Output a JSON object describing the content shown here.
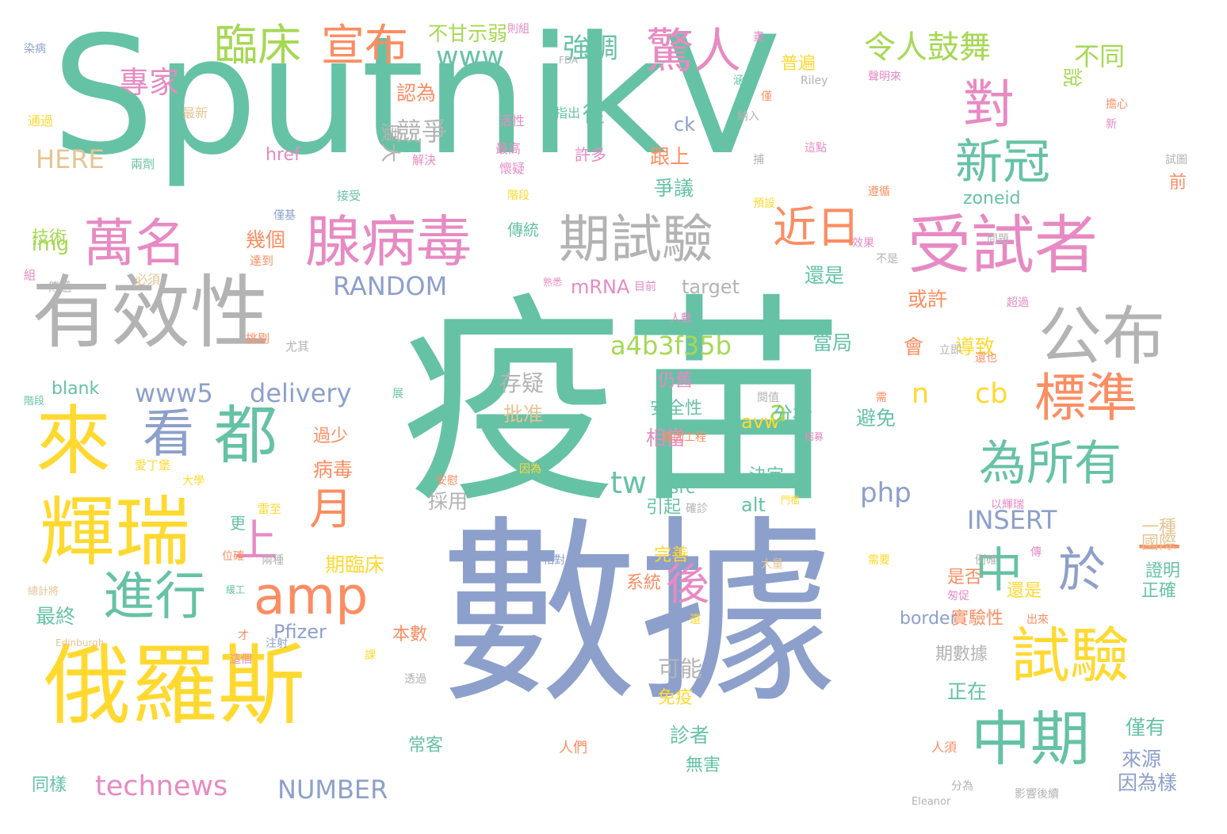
{
  "palette": {
    "teal": "#66c2a5",
    "orange": "#fc8d62",
    "blue": "#8da0cb",
    "pink": "#e78ac3",
    "green": "#a6d854",
    "yellow": "#ffd92f",
    "tan": "#e5c494",
    "gray": "#b3b3b3"
  },
  "words": [
    {
      "text": "疫苗",
      "color": "teal"
    },
    {
      "text": "數據",
      "color": "blue"
    },
    {
      "text": "SputnikV",
      "color": "teal"
    },
    {
      "text": "有效性",
      "color": "gray"
    },
    {
      "text": "俄羅斯",
      "color": "yellow"
    },
    {
      "text": "受試者",
      "color": "pink"
    },
    {
      "text": "來",
      "color": "yellow"
    },
    {
      "text": "輝瑞",
      "color": "yellow"
    },
    {
      "text": "試驗",
      "color": "yellow"
    },
    {
      "text": "中期",
      "color": "teal"
    },
    {
      "text": "為所有",
      "color": "teal"
    },
    {
      "text": "腺病毒",
      "color": "pink"
    },
    {
      "text": "期試驗",
      "color": "gray"
    },
    {
      "text": "萬名",
      "color": "pink"
    },
    {
      "text": "公布",
      "color": "gray"
    },
    {
      "text": "都",
      "color": "teal"
    },
    {
      "text": "看",
      "color": "blue"
    },
    {
      "text": "進行",
      "color": "teal"
    },
    {
      "text": "amp",
      "color": "orange"
    },
    {
      "text": "標準",
      "color": "orange"
    },
    {
      "text": "中",
      "color": "teal"
    },
    {
      "text": "於",
      "color": "blue"
    },
    {
      "text": "對",
      "color": "pink"
    },
    {
      "text": "新冠",
      "color": "teal"
    },
    {
      "text": "臨床",
      "color": "green"
    },
    {
      "text": "宣布",
      "color": "orange"
    },
    {
      "text": "驚人",
      "color": "pink"
    },
    {
      "text": "近日",
      "color": "orange"
    },
    {
      "text": "上",
      "color": "pink"
    },
    {
      "text": "月",
      "color": "orange"
    },
    {
      "text": "後",
      "color": "pink"
    },
    {
      "text": "一",
      "color": "orange"
    },
    {
      "text": "令人鼓舞",
      "color": "green"
    },
    {
      "text": "專家",
      "color": "pink"
    },
    {
      "text": "www",
      "color": "teal"
    },
    {
      "text": "強調",
      "color": "teal"
    },
    {
      "text": "不甘示弱",
      "color": "green"
    },
    {
      "text": "不同",
      "color": "green"
    },
    {
      "text": "說",
      "color": "green"
    },
    {
      "text": "技術",
      "color": "green"
    },
    {
      "text": "img",
      "color": "green"
    },
    {
      "text": "HERE",
      "color": "tan"
    },
    {
      "text": "RANDOM",
      "color": "blue"
    },
    {
      "text": "a4b3f35b",
      "color": "green"
    },
    {
      "text": "www5",
      "color": "blue"
    },
    {
      "text": "delivery",
      "color": "blue"
    },
    {
      "text": "technews",
      "color": "pink"
    },
    {
      "text": "NUMBER",
      "color": "blue"
    },
    {
      "text": "INSERT",
      "color": "blue"
    },
    {
      "text": "php",
      "color": "blue"
    },
    {
      "text": "cb",
      "color": "yellow"
    },
    {
      "text": "tw",
      "color": "teal"
    },
    {
      "text": "n",
      "color": "yellow"
    },
    {
      "text": "a",
      "color": "green"
    },
    {
      "text": "avw",
      "color": "yellow"
    },
    {
      "text": "alt",
      "color": "teal"
    },
    {
      "text": "src",
      "color": "teal"
    },
    {
      "text": "href",
      "color": "pink"
    },
    {
      "text": "ck",
      "color": "blue"
    },
    {
      "text": "zoneid",
      "color": "teal"
    },
    {
      "text": "target",
      "color": "gray"
    },
    {
      "text": "mRNA",
      "color": "pink"
    },
    {
      "text": "blank",
      "color": "teal"
    },
    {
      "text": "border",
      "color": "blue"
    },
    {
      "text": "Pfizer",
      "color": "blue"
    },
    {
      "text": "競爭",
      "color": "gray"
    },
    {
      "text": "廣大",
      "color": "gray"
    },
    {
      "text": "從",
      "color": "teal"
    },
    {
      "text": "許多",
      "color": "pink"
    },
    {
      "text": "跟上",
      "color": "orange"
    },
    {
      "text": "爭議",
      "color": "teal"
    },
    {
      "text": "認為",
      "color": "orange"
    },
    {
      "text": "還是",
      "color": "teal"
    },
    {
      "text": "或許",
      "color": "orange"
    },
    {
      "text": "當局",
      "color": "teal"
    },
    {
      "text": "會",
      "color": "orange"
    },
    {
      "text": "導致",
      "color": "yellow"
    },
    {
      "text": "避免",
      "color": "teal"
    },
    {
      "text": "分析",
      "color": "teal"
    },
    {
      "text": "相當",
      "color": "pink"
    },
    {
      "text": "期臨床",
      "color": "yellow"
    },
    {
      "text": "病毒",
      "color": "orange"
    },
    {
      "text": "最終",
      "color": "teal"
    },
    {
      "text": "可能",
      "color": "gray"
    },
    {
      "text": "正在",
      "color": "teal"
    },
    {
      "text": "診者",
      "color": "teal"
    },
    {
      "text": "來源",
      "color": "blue"
    },
    {
      "text": "僅有",
      "color": "teal"
    },
    {
      "text": "因為樣",
      "color": "blue"
    },
    {
      "text": "期數據",
      "color": "gray"
    },
    {
      "text": "實驗性",
      "color": "orange"
    },
    {
      "text": "證明",
      "color": "teal"
    },
    {
      "text": "正確",
      "color": "teal"
    },
    {
      "text": "國際",
      "color": "tan"
    },
    {
      "text": "一種",
      "color": "tan"
    },
    {
      "text": "引起",
      "color": "teal"
    },
    {
      "text": "採用",
      "color": "gray"
    },
    {
      "text": "存疑",
      "color": "gray"
    },
    {
      "text": "批准",
      "color": "tan"
    },
    {
      "text": "決定",
      "color": "teal"
    },
    {
      "text": "安全性",
      "color": "teal"
    },
    {
      "text": "仍舊",
      "color": "pink"
    },
    {
      "text": "幾個",
      "color": "orange"
    },
    {
      "text": "傳統",
      "color": "teal"
    },
    {
      "text": "同樣",
      "color": "teal"
    },
    {
      "text": "本數",
      "color": "orange"
    },
    {
      "text": "系統",
      "color": "orange"
    },
    {
      "text": "完善",
      "color": "yellow"
    },
    {
      "text": "常客",
      "color": "teal"
    },
    {
      "text": "無害",
      "color": "teal"
    },
    {
      "text": "免疫",
      "color": "yellow"
    },
    {
      "text": "過少",
      "color": "orange"
    },
    {
      "text": "更",
      "color": "teal"
    },
    {
      "text": "普遍",
      "color": "yellow"
    },
    {
      "text": "前",
      "color": "orange"
    },
    {
      "text": "是否",
      "color": "orange"
    },
    {
      "text": "還是",
      "color": "yellow"
    },
    {
      "text": "染病",
      "color": "blue"
    },
    {
      "text": "通過",
      "color": "yellow"
    },
    {
      "text": "最新",
      "color": "tan"
    },
    {
      "text": "活性",
      "color": "pink"
    },
    {
      "text": "指出",
      "color": "teal"
    },
    {
      "text": "最高",
      "color": "pink"
    },
    {
      "text": "懷疑",
      "color": "pink"
    },
    {
      "text": "階段",
      "color": "yellow"
    },
    {
      "text": "兩劑",
      "color": "teal"
    },
    {
      "text": "解決",
      "color": "pink"
    },
    {
      "text": "接受",
      "color": "teal"
    },
    {
      "text": "僅基",
      "color": "blue"
    },
    {
      "text": "達到",
      "color": "orange"
    },
    {
      "text": "必須",
      "color": "tan"
    },
    {
      "text": "組",
      "color": "pink"
    },
    {
      "text": "傳遞",
      "color": "gray"
    },
    {
      "text": "挑剔",
      "color": "orange"
    },
    {
      "text": "尤其",
      "color": "gray"
    },
    {
      "text": "基",
      "color": "teal"
    },
    {
      "text": "展",
      "color": "teal"
    },
    {
      "text": "大學",
      "color": "yellow"
    },
    {
      "text": "階段",
      "color": "teal"
    },
    {
      "text": "愛丁堡",
      "color": "yellow"
    },
    {
      "text": "雷至",
      "color": "yellow"
    },
    {
      "text": "安慰",
      "color": "orange"
    },
    {
      "text": "因為",
      "color": "yellow"
    },
    {
      "text": "位確",
      "color": "orange"
    },
    {
      "text": "兩種",
      "color": "gray"
    },
    {
      "text": "總計將",
      "color": "tan"
    },
    {
      "text": "才",
      "color": "orange"
    },
    {
      "text": "Edinburgh",
      "color": "tan"
    },
    {
      "text": "這個",
      "color": "pink"
    },
    {
      "text": "注射",
      "color": "blue"
    },
    {
      "text": "課",
      "color": "yellow"
    },
    {
      "text": "透過",
      "color": "gray"
    },
    {
      "text": "人們",
      "color": "orange"
    },
    {
      "text": "相對",
      "color": "blue"
    },
    {
      "text": "例",
      "color": "blue"
    },
    {
      "text": "大量",
      "color": "tan"
    },
    {
      "text": "還",
      "color": "yellow"
    },
    {
      "text": "出來",
      "color": "orange"
    },
    {
      "text": "需要",
      "color": "yellow"
    },
    {
      "text": "傳",
      "color": "pink"
    },
    {
      "text": "例確",
      "color": "gray"
    },
    {
      "text": "匆促",
      "color": "pink"
    },
    {
      "text": "人須",
      "color": "orange"
    },
    {
      "text": "Eleanor",
      "color": "gray"
    },
    {
      "text": "分為",
      "color": "gray"
    },
    {
      "text": "影響後續",
      "color": "gray"
    },
    {
      "text": "則組",
      "color": "pink"
    },
    {
      "text": "FDA",
      "color": "gray"
    },
    {
      "text": "畫",
      "color": "pink"
    },
    {
      "text": "涵蓋",
      "color": "teal"
    },
    {
      "text": "僅",
      "color": "orange"
    },
    {
      "text": "Riley",
      "color": "gray"
    },
    {
      "text": "聲明來",
      "color": "pink"
    },
    {
      "text": "擔心",
      "color": "orange"
    },
    {
      "text": "新",
      "color": "pink"
    },
    {
      "text": "納入",
      "color": "gray"
    },
    {
      "text": "這點",
      "color": "pink"
    },
    {
      "text": "捕",
      "color": "gray"
    },
    {
      "text": "遵循",
      "color": "orange"
    },
    {
      "text": "試圖",
      "color": "gray"
    },
    {
      "text": "預設",
      "color": "yellow"
    },
    {
      "text": "問題",
      "color": "gray"
    },
    {
      "text": "效果",
      "color": "pink"
    },
    {
      "text": "不是",
      "color": "gray"
    },
    {
      "text": "目前",
      "color": "pink"
    },
    {
      "text": "熟悉",
      "color": "pink"
    },
    {
      "text": "超過",
      "color": "pink"
    },
    {
      "text": "人數",
      "color": "pink"
    },
    {
      "text": "立即",
      "color": "gray"
    },
    {
      "text": "還也",
      "color": "orange"
    },
    {
      "text": "閱值",
      "color": "gray"
    },
    {
      "text": "需",
      "color": "orange"
    },
    {
      "text": "招募",
      "color": "pink"
    },
    {
      "text": "基因工程",
      "color": "orange"
    },
    {
      "text": "門檻",
      "color": "yellow"
    },
    {
      "text": "確診",
      "color": "gray"
    },
    {
      "text": "以輝瑞",
      "color": "pink"
    },
    {
      "text": "緩工",
      "color": "teal"
    }
  ]
}
